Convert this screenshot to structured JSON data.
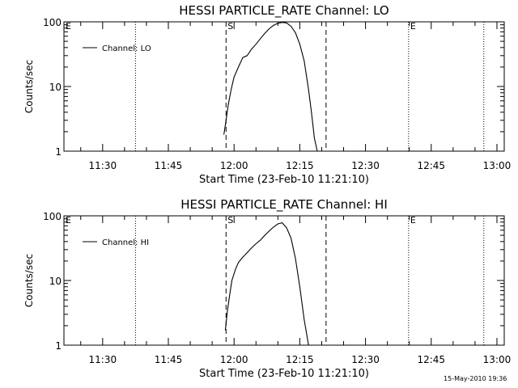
{
  "chart_data": [
    {
      "type": "line",
      "title": "HESSI PARTICLE_RATE Channel: LO",
      "xlabel": "Start Time (23-Feb-10 11:21:10)",
      "ylabel": "Counts/sec",
      "y_scale": "log",
      "ylim": [
        1,
        100
      ],
      "xlim": [
        "11:21:10",
        "13:01:40"
      ],
      "x_ticks": [
        "11:30",
        "11:45",
        "12:00",
        "12:15",
        "12:30",
        "12:45",
        "13:00"
      ],
      "y_ticks": [
        "1",
        "10",
        "100"
      ],
      "grid": false,
      "legend": "top-left",
      "series": [
        {
          "name": "Channel: LO",
          "x": [
            "11:57:40",
            "11:58:10",
            "11:58:40",
            "11:59:20",
            "12:00:00",
            "12:01:00",
            "12:02:00",
            "12:03:00",
            "12:04:00",
            "12:05:00",
            "12:06:00",
            "12:07:00",
            "12:08:00",
            "12:09:00",
            "12:10:00",
            "12:11:00",
            "12:12:00",
            "12:13:00",
            "12:14:00",
            "12:15:00",
            "12:16:00",
            "12:17:00",
            "12:17:40",
            "12:18:20",
            "12:19:00"
          ],
          "values": [
            1.8,
            3.0,
            5.2,
            9.0,
            14,
            20,
            28,
            30,
            38,
            45,
            55,
            66,
            78,
            88,
            95,
            98,
            96,
            85,
            68,
            45,
            25,
            9,
            4,
            1.6,
            1
          ]
        }
      ],
      "markers": [
        {
          "label": "E",
          "time": "11:21:10",
          "style": "dotted"
        },
        {
          "label": "",
          "time": "11:37:30",
          "style": "dotted"
        },
        {
          "label": "S",
          "time": "11:58:10",
          "style": "dashed"
        },
        {
          "label": "",
          "time": "12:21:00",
          "style": "dashed"
        },
        {
          "label": "E",
          "time": "12:39:50",
          "style": "dotted"
        },
        {
          "label": "",
          "time": "12:57:00",
          "style": "dotted"
        }
      ]
    },
    {
      "type": "line",
      "title": "HESSI PARTICLE_RATE Channel: HI",
      "xlabel": "Start Time (23-Feb-10 11:21:10)",
      "ylabel": "Counts/sec",
      "y_scale": "log",
      "ylim": [
        1,
        100
      ],
      "xlim": [
        "11:21:10",
        "13:01:40"
      ],
      "x_ticks": [
        "11:30",
        "11:45",
        "12:00",
        "12:15",
        "12:30",
        "12:45",
        "13:00"
      ],
      "y_ticks": [
        "1",
        "10",
        "100"
      ],
      "grid": false,
      "legend": "top-left",
      "series": [
        {
          "name": "Channel: HI",
          "x": [
            "11:58:00",
            "11:58:30",
            "11:59:00",
            "11:59:30",
            "12:00:20",
            "12:01:00",
            "12:02:00",
            "12:03:00",
            "12:04:00",
            "12:05:00",
            "12:06:00",
            "12:07:00",
            "12:08:00",
            "12:09:00",
            "12:10:00",
            "12:11:00",
            "12:12:00",
            "12:13:00",
            "12:14:00",
            "12:15:00",
            "12:16:00",
            "12:17:00"
          ],
          "values": [
            1.7,
            3.5,
            6,
            10,
            15,
            19,
            23,
            27,
            32,
            37,
            42,
            50,
            58,
            67,
            75,
            78,
            65,
            45,
            22,
            8,
            2.5,
            1
          ]
        }
      ],
      "markers": [
        {
          "label": "E",
          "time": "11:21:10",
          "style": "dotted"
        },
        {
          "label": "",
          "time": "11:37:30",
          "style": "dotted"
        },
        {
          "label": "S",
          "time": "11:58:10",
          "style": "dashed"
        },
        {
          "label": "",
          "time": "12:21:00",
          "style": "dashed"
        },
        {
          "label": "E",
          "time": "12:39:50",
          "style": "dotted"
        },
        {
          "label": "",
          "time": "12:57:00",
          "style": "dotted"
        }
      ]
    }
  ],
  "footer": {
    "timestamp": "15-May-2010 19:36"
  }
}
